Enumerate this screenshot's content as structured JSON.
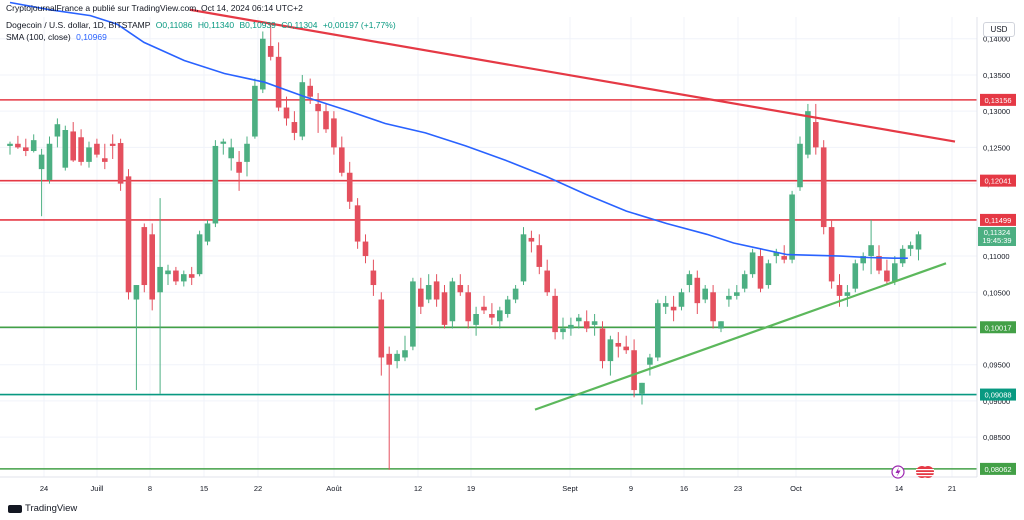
{
  "header": {
    "publisher": "CryptojournalFrance a publié sur TradingView.com, Oct 14, 2024 06:14 UTC+2",
    "symbol": "Dogecoin / U.S. dollar, 1D, BITSTAMP",
    "open": "O0,11086",
    "high": "H0,11340",
    "low": "B0,10939",
    "close": "C0,11304",
    "change": "+0,00197 (+1,77%)",
    "indicator": "SMA (100, close)",
    "indicator_value": "0,10969"
  },
  "currency": "USD",
  "brand": "TradingView",
  "price_label": "0,11324",
  "countdown": "19:45:39",
  "colors": {
    "up": "#4caf82",
    "down": "#e4505e",
    "sma": "#2962ff",
    "resistance": "#e53945",
    "support": "#43a047",
    "support_teal": "#089981",
    "trendline_up": "#5cb85c"
  },
  "icons": [
    "lightning-icon",
    "us-flag-icon"
  ],
  "chart_data": {
    "type": "candlestick",
    "title": "Dogecoin / U.S. dollar, 1D, BITSTAMP",
    "ylim": [
      0.0795,
      0.143
    ],
    "y_ticks": [
      "0,08500",
      "0,09000",
      "0,09500",
      "0,10000",
      "0,10500",
      "0,11000",
      "0,11500",
      "0,12000",
      "0,12500",
      "0,13000",
      "0,13500",
      "0,14000"
    ],
    "x_ticks": [
      "24",
      "Juill",
      "8",
      "15",
      "22",
      "Août",
      "12",
      "19",
      "Sept",
      "9",
      "16",
      "23",
      "Oct",
      "14",
      "21"
    ],
    "horizontal_levels": [
      {
        "value": 0.13156,
        "label": "0,13156",
        "color": "#e53945"
      },
      {
        "value": 0.12041,
        "label": "0,12041",
        "color": "#e53945"
      },
      {
        "value": 0.11499,
        "label": "0,11499",
        "color": "#e53945"
      },
      {
        "value": 0.10017,
        "label": "0,10017",
        "color": "#43a047"
      },
      {
        "value": 0.09088,
        "label": "0,09088",
        "color": "#089981"
      },
      {
        "value": 0.08062,
        "label": "0,08062",
        "color": "#43a047"
      }
    ],
    "trendlines": [
      {
        "from": [
          6,
          0.144
        ],
        "to": [
          31.5,
          0.1258
        ],
        "color": "#e53945"
      },
      {
        "from": [
          17.5,
          0.0888
        ],
        "to": [
          31.2,
          0.109
        ],
        "color": "#5cb85c"
      }
    ],
    "sma_label": "SMA (100, close)",
    "candles": [
      [
        0.1252,
        0.1258,
        0.124,
        0.1255
      ],
      [
        0.1255,
        0.1266,
        0.1248,
        0.125
      ],
      [
        0.125,
        0.1262,
        0.1238,
        0.1245
      ],
      [
        0.1245,
        0.1268,
        0.1243,
        0.126
      ],
      [
        0.122,
        0.1248,
        0.1155,
        0.124
      ],
      [
        0.1205,
        0.1265,
        0.12,
        0.1255
      ],
      [
        0.1265,
        0.129,
        0.125,
        0.1282
      ],
      [
        0.1222,
        0.128,
        0.1218,
        0.1274
      ],
      [
        0.1272,
        0.1285,
        0.123,
        0.1232
      ],
      [
        0.1264,
        0.1275,
        0.1225,
        0.123
      ],
      [
        0.123,
        0.1258,
        0.1222,
        0.125
      ],
      [
        0.1255,
        0.1262,
        0.1236,
        0.124
      ],
      [
        0.1235,
        0.1255,
        0.122,
        0.123
      ],
      [
        0.1255,
        0.1268,
        0.1234,
        0.1252
      ],
      [
        0.1256,
        0.1262,
        0.119,
        0.12
      ],
      [
        0.121,
        0.122,
        0.104,
        0.105
      ],
      [
        0.104,
        0.106,
        0.0915,
        0.106
      ],
      [
        0.114,
        0.1145,
        0.105,
        0.106
      ],
      [
        0.113,
        0.1145,
        0.1025,
        0.104
      ],
      [
        0.105,
        0.118,
        0.091,
        0.1085
      ],
      [
        0.1075,
        0.1088,
        0.106,
        0.108
      ],
      [
        0.108,
        0.1085,
        0.106,
        0.1065
      ],
      [
        0.1065,
        0.108,
        0.1058,
        0.1075
      ],
      [
        0.1075,
        0.1085,
        0.106,
        0.107
      ],
      [
        0.1075,
        0.1135,
        0.1072,
        0.113
      ],
      [
        0.112,
        0.115,
        0.1115,
        0.1145
      ],
      [
        0.1145,
        0.126,
        0.114,
        0.1252
      ],
      [
        0.1255,
        0.1262,
        0.124,
        0.1258
      ],
      [
        0.1235,
        0.1262,
        0.1218,
        0.125
      ],
      [
        0.123,
        0.1245,
        0.119,
        0.1215
      ],
      [
        0.123,
        0.1265,
        0.121,
        0.1255
      ],
      [
        0.1265,
        0.1345,
        0.1262,
        0.1335
      ],
      [
        0.133,
        0.141,
        0.1325,
        0.14
      ],
      [
        0.139,
        0.142,
        0.137,
        0.1375
      ],
      [
        0.1375,
        0.1395,
        0.13,
        0.1305
      ],
      [
        0.1305,
        0.132,
        0.128,
        0.129
      ],
      [
        0.1285,
        0.13,
        0.126,
        0.127
      ],
      [
        0.1265,
        0.135,
        0.126,
        0.134
      ],
      [
        0.1335,
        0.1345,
        0.131,
        0.132
      ],
      [
        0.131,
        0.1325,
        0.127,
        0.13
      ],
      [
        0.13,
        0.131,
        0.127,
        0.1275
      ],
      [
        0.129,
        0.13,
        0.124,
        0.125
      ],
      [
        0.125,
        0.1265,
        0.121,
        0.1215
      ],
      [
        0.1215,
        0.123,
        0.1165,
        0.1175
      ],
      [
        0.117,
        0.118,
        0.111,
        0.112
      ],
      [
        0.112,
        0.113,
        0.109,
        0.11
      ],
      [
        0.108,
        0.1095,
        0.1045,
        0.106
      ],
      [
        0.104,
        0.105,
        0.0935,
        0.096
      ],
      [
        0.0965,
        0.0975,
        0.0805,
        0.095
      ],
      [
        0.0955,
        0.097,
        0.0945,
        0.0965
      ],
      [
        0.096,
        0.099,
        0.0955,
        0.097
      ],
      [
        0.0975,
        0.107,
        0.097,
        0.1065
      ],
      [
        0.1055,
        0.107,
        0.102,
        0.103
      ],
      [
        0.104,
        0.1075,
        0.1035,
        0.106
      ],
      [
        0.1065,
        0.1075,
        0.103,
        0.104
      ],
      [
        0.105,
        0.106,
        0.1,
        0.1005
      ],
      [
        0.101,
        0.107,
        0.1,
        0.1065
      ],
      [
        0.106,
        0.1075,
        0.1045,
        0.105
      ],
      [
        0.105,
        0.106,
        0.1,
        0.101
      ],
      [
        0.1005,
        0.103,
        0.099,
        0.102
      ],
      [
        0.103,
        0.1045,
        0.102,
        0.1025
      ],
      [
        0.102,
        0.1035,
        0.1005,
        0.1015
      ],
      [
        0.101,
        0.103,
        0.1,
        0.1025
      ],
      [
        0.102,
        0.1045,
        0.1015,
        0.104
      ],
      [
        0.104,
        0.106,
        0.1035,
        0.1055
      ],
      [
        0.1065,
        0.114,
        0.106,
        0.113
      ],
      [
        0.1125,
        0.1135,
        0.1105,
        0.112
      ],
      [
        0.1115,
        0.113,
        0.1075,
        0.1085
      ],
      [
        0.108,
        0.1095,
        0.1045,
        0.105
      ],
      [
        0.1045,
        0.1055,
        0.0985,
        0.0995
      ],
      [
        0.0995,
        0.1015,
        0.0985,
        0.1
      ],
      [
        0.1,
        0.1015,
        0.099,
        0.1005
      ],
      [
        0.101,
        0.102,
        0.1,
        0.1015
      ],
      [
        0.101,
        0.1025,
        0.0995,
        0.1
      ],
      [
        0.1005,
        0.102,
        0.099,
        0.101
      ],
      [
        0.1,
        0.101,
        0.0945,
        0.0955
      ],
      [
        0.0955,
        0.099,
        0.0935,
        0.0985
      ],
      [
        0.098,
        0.0995,
        0.096,
        0.0975
      ],
      [
        0.0975,
        0.099,
        0.0965,
        0.097
      ],
      [
        0.097,
        0.0985,
        0.0905,
        0.0915
      ],
      [
        0.091,
        0.0925,
        0.0895,
        0.0925
      ],
      [
        0.095,
        0.0965,
        0.0935,
        0.096
      ],
      [
        0.096,
        0.104,
        0.0955,
        0.1035
      ],
      [
        0.103,
        0.1045,
        0.102,
        0.1035
      ],
      [
        0.103,
        0.1045,
        0.101,
        0.1025
      ],
      [
        0.103,
        0.1055,
        0.1025,
        0.105
      ],
      [
        0.106,
        0.108,
        0.105,
        0.1075
      ],
      [
        0.107,
        0.108,
        0.102,
        0.1035
      ],
      [
        0.104,
        0.106,
        0.1035,
        0.1055
      ],
      [
        0.105,
        0.106,
        0.1,
        0.101
      ],
      [
        0.1,
        0.101,
        0.0995,
        0.101
      ],
      [
        0.104,
        0.1055,
        0.103,
        0.1045
      ],
      [
        0.1045,
        0.106,
        0.104,
        0.105
      ],
      [
        0.1055,
        0.108,
        0.105,
        0.1075
      ],
      [
        0.1075,
        0.111,
        0.107,
        0.1105
      ],
      [
        0.11,
        0.111,
        0.105,
        0.1055
      ],
      [
        0.106,
        0.1095,
        0.1055,
        0.109
      ],
      [
        0.11,
        0.111,
        0.109,
        0.1105
      ],
      [
        0.11,
        0.1115,
        0.109,
        0.1095
      ],
      [
        0.1095,
        0.119,
        0.109,
        0.1185
      ],
      [
        0.1195,
        0.1265,
        0.119,
        0.1255
      ],
      [
        0.124,
        0.131,
        0.1235,
        0.13
      ],
      [
        0.1285,
        0.131,
        0.124,
        0.125
      ],
      [
        0.125,
        0.126,
        0.113,
        0.114
      ],
      [
        0.114,
        0.115,
        0.1055,
        0.1065
      ],
      [
        0.106,
        0.1075,
        0.103,
        0.1045
      ],
      [
        0.1045,
        0.106,
        0.103,
        0.105
      ],
      [
        0.1055,
        0.1095,
        0.105,
        0.109
      ],
      [
        0.109,
        0.1105,
        0.108,
        0.11
      ],
      [
        0.11,
        0.115,
        0.1075,
        0.1115
      ],
      [
        0.11,
        0.1115,
        0.1075,
        0.108
      ],
      [
        0.108,
        0.1095,
        0.106,
        0.1065
      ],
      [
        0.1065,
        0.11,
        0.106,
        0.109
      ],
      [
        0.109,
        0.1115,
        0.1085,
        0.111
      ],
      [
        0.111,
        0.112,
        0.11,
        0.1115
      ],
      [
        0.1109,
        0.1134,
        0.1094,
        0.113
      ]
    ],
    "sma": [
      [
        0,
        0.145
      ],
      [
        3,
        0.144
      ],
      [
        6,
        0.1432
      ],
      [
        8,
        0.142
      ],
      [
        10,
        0.1395
      ],
      [
        13,
        0.137
      ],
      [
        16,
        0.1352
      ],
      [
        19,
        0.134
      ],
      [
        22,
        0.132
      ],
      [
        25,
        0.1302
      ],
      [
        28,
        0.1283
      ],
      [
        31,
        0.127
      ],
      [
        34,
        0.1252
      ],
      [
        37,
        0.1232
      ],
      [
        40,
        0.121
      ],
      [
        43,
        0.1185
      ],
      [
        46,
        0.1162
      ],
      [
        49,
        0.1145
      ],
      [
        52,
        0.113
      ],
      [
        54,
        0.1118
      ],
      [
        56,
        0.111
      ],
      [
        58,
        0.1102
      ],
      [
        60,
        0.1101
      ],
      [
        62,
        0.11
      ],
      [
        64,
        0.1098
      ],
      [
        66,
        0.1097
      ],
      [
        67,
        0.1097
      ]
    ]
  }
}
